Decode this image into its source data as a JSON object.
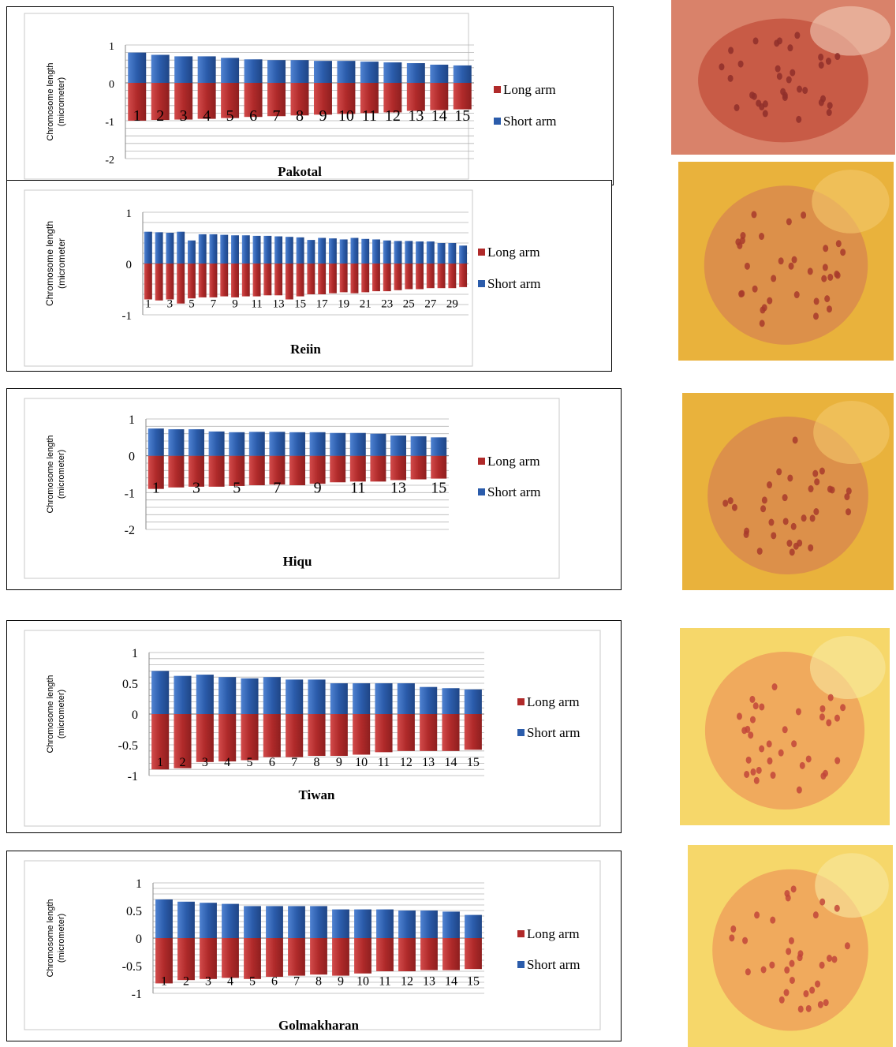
{
  "chart_data": [
    {
      "type": "bar",
      "title": "Pakotal",
      "ylabel": "Chromosome length (micrometer)",
      "ylim": [
        -2,
        1
      ],
      "yticks": [
        "1",
        "0",
        "-1",
        "-2"
      ],
      "categories": [
        "1",
        "2",
        "3",
        "4",
        "5",
        "6",
        "7",
        "8",
        "9",
        "10",
        "11",
        "12",
        "13",
        "14",
        "15"
      ],
      "series": [
        {
          "name": "Long arm",
          "values": [
            -1.0,
            -0.98,
            -0.97,
            -0.95,
            -0.93,
            -0.9,
            -0.88,
            -0.86,
            -0.84,
            -0.82,
            -0.8,
            -0.78,
            -0.74,
            -0.72,
            -0.7
          ]
        },
        {
          "name": "Short arm",
          "values": [
            0.8,
            0.74,
            0.7,
            0.7,
            0.66,
            0.62,
            0.6,
            0.6,
            0.58,
            0.58,
            0.56,
            0.54,
            0.52,
            0.48,
            0.46
          ]
        }
      ],
      "legend": "right",
      "grid": true
    },
    {
      "type": "bar",
      "title": "Reiin",
      "ylabel": "Chromosome length (micrometer",
      "ylim": [
        -1,
        1
      ],
      "yticks": [
        "1",
        "0",
        "-1"
      ],
      "categories": [
        "1",
        "2",
        "3",
        "4",
        "5",
        "6",
        "7",
        "8",
        "9",
        "10",
        "11",
        "12",
        "13",
        "14",
        "15",
        "16",
        "17",
        "18",
        "19",
        "20",
        "21",
        "22",
        "23",
        "24",
        "25",
        "26",
        "27",
        "28",
        "29",
        "30"
      ],
      "category_labels_shown": [
        "1",
        "3",
        "5",
        "7",
        "9",
        "11",
        "13",
        "15",
        "17",
        "19",
        "21",
        "23",
        "25",
        "27",
        "29"
      ],
      "series": [
        {
          "name": "Long arm",
          "values": [
            -0.7,
            -0.72,
            -0.7,
            -0.78,
            -0.68,
            -0.66,
            -0.66,
            -0.64,
            -0.66,
            -0.64,
            -0.64,
            -0.62,
            -0.62,
            -0.7,
            -0.64,
            -0.6,
            -0.6,
            -0.58,
            -0.56,
            -0.58,
            -0.56,
            -0.54,
            -0.54,
            -0.52,
            -0.5,
            -0.5,
            -0.48,
            -0.48,
            -0.48,
            -0.46
          ]
        },
        {
          "name": "Short arm",
          "values": [
            0.62,
            0.61,
            0.6,
            0.62,
            0.45,
            0.57,
            0.57,
            0.56,
            0.55,
            0.55,
            0.54,
            0.54,
            0.53,
            0.52,
            0.51,
            0.46,
            0.5,
            0.49,
            0.47,
            0.5,
            0.48,
            0.47,
            0.45,
            0.44,
            0.44,
            0.43,
            0.43,
            0.4,
            0.4,
            0.35
          ]
        }
      ],
      "legend": "right",
      "grid": true
    },
    {
      "type": "bar",
      "title": "Hiqu",
      "ylabel": "Chromosome length (micrometer)",
      "ylim": [
        -2,
        1
      ],
      "yticks": [
        "1",
        "0",
        "-1",
        "-2"
      ],
      "categories": [
        "1",
        "2",
        "3",
        "4",
        "5",
        "6",
        "7",
        "8",
        "9",
        "10",
        "11",
        "12",
        "13",
        "14",
        "15"
      ],
      "category_labels_shown": [
        "1",
        "3",
        "5",
        "7",
        "9",
        "11",
        "13",
        "15"
      ],
      "series": [
        {
          "name": "Long arm",
          "values": [
            -0.9,
            -0.86,
            -0.84,
            -0.84,
            -0.82,
            -0.8,
            -0.78,
            -0.8,
            -0.76,
            -0.72,
            -0.7,
            -0.7,
            -0.66,
            -0.64,
            -0.62
          ]
        },
        {
          "name": "Short arm",
          "values": [
            0.74,
            0.72,
            0.72,
            0.66,
            0.64,
            0.65,
            0.65,
            0.64,
            0.64,
            0.62,
            0.62,
            0.6,
            0.55,
            0.53,
            0.5
          ]
        }
      ],
      "legend": "right",
      "grid": true
    },
    {
      "type": "bar",
      "title": "Tiwan",
      "ylabel": "Chromosome length (micrometer)",
      "ylim": [
        -1,
        1
      ],
      "yticks": [
        "1",
        "0.5",
        "0",
        "-0.5",
        "-1"
      ],
      "categories": [
        "1",
        "2",
        "3",
        "4",
        "5",
        "6",
        "7",
        "8",
        "9",
        "10",
        "11",
        "12",
        "13",
        "14",
        "15"
      ],
      "series": [
        {
          "name": "Long arm",
          "values": [
            -0.9,
            -0.88,
            -0.78,
            -0.77,
            -0.75,
            -0.7,
            -0.7,
            -0.68,
            -0.68,
            -0.66,
            -0.62,
            -0.6,
            -0.6,
            -0.6,
            -0.58
          ]
        },
        {
          "name": "Short arm",
          "values": [
            0.7,
            0.62,
            0.64,
            0.6,
            0.58,
            0.6,
            0.56,
            0.56,
            0.5,
            0.5,
            0.5,
            0.5,
            0.44,
            0.42,
            0.4
          ]
        }
      ],
      "legend": "right",
      "grid": true
    },
    {
      "type": "bar",
      "title": "Golmakharan",
      "ylabel": "Chromosome length (micrometer)",
      "ylim": [
        -1,
        1
      ],
      "yticks": [
        "1",
        "0.5",
        "0",
        "-0.5",
        "-1"
      ],
      "categories": [
        "1",
        "2",
        "3",
        "4",
        "5",
        "6",
        "7",
        "8",
        "9",
        "10",
        "11",
        "12",
        "13",
        "14",
        "15"
      ],
      "series": [
        {
          "name": "Long arm",
          "values": [
            -0.82,
            -0.76,
            -0.74,
            -0.72,
            -0.74,
            -0.7,
            -0.68,
            -0.66,
            -0.68,
            -0.64,
            -0.6,
            -0.6,
            -0.58,
            -0.58,
            -0.56
          ]
        },
        {
          "name": "Short arm",
          "values": [
            0.7,
            0.66,
            0.64,
            0.62,
            0.58,
            0.58,
            0.58,
            0.58,
            0.52,
            0.52,
            0.52,
            0.5,
            0.5,
            0.48,
            0.42
          ]
        }
      ],
      "legend": "right",
      "grid": true
    }
  ],
  "colors": {
    "long_arm": "#b02a2a",
    "short_arm": "#2b5cab",
    "grid": "#b5b5b5"
  },
  "photos": [
    {
      "name": "pakotal-karyotype-photo",
      "tone": "red"
    },
    {
      "name": "reiin-karyotype-photo",
      "tone": "amber"
    },
    {
      "name": "hiqu-karyotype-photo",
      "tone": "amber"
    },
    {
      "name": "tiwan-karyotype-photo",
      "tone": "yellow"
    },
    {
      "name": "golmakharan-karyotype-photo",
      "tone": "yellow"
    }
  ]
}
